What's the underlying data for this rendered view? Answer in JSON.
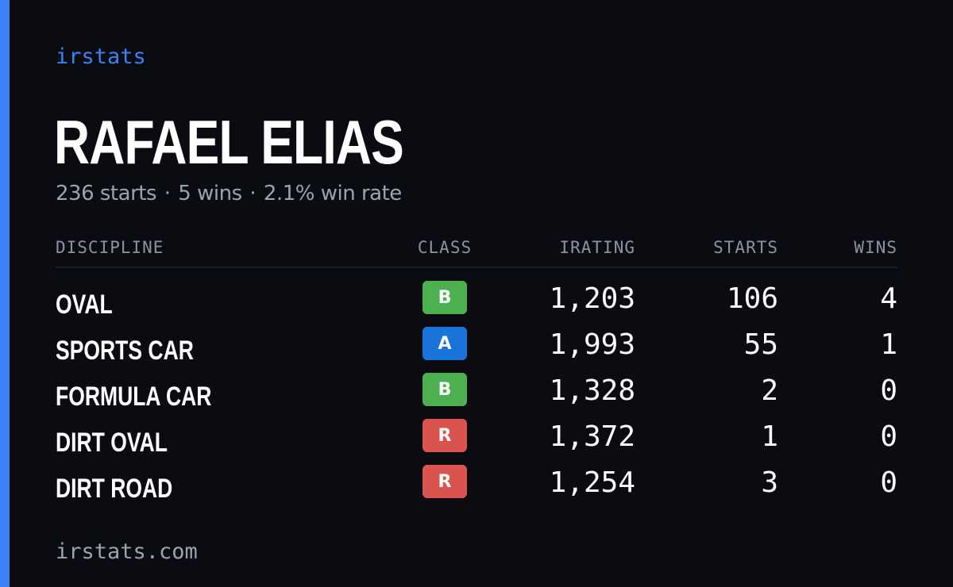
{
  "brand": "irstats",
  "driver": {
    "name": "RAFAEL ELIAS",
    "starts_text": "236 starts",
    "wins_text": "5 wins",
    "winrate_text": "2.1% win rate",
    "separator": "·"
  },
  "table": {
    "headers": {
      "discipline": "DISCIPLINE",
      "class": "CLASS",
      "irating": "IRATING",
      "starts": "STARTS",
      "wins": "WINS"
    },
    "rows": [
      {
        "discipline": "OVAL",
        "class": "B",
        "class_color": "#4caf50",
        "irating": "1,203",
        "starts": "106",
        "wins": "4"
      },
      {
        "discipline": "SPORTS CAR",
        "class": "A",
        "class_color": "#1a73d9",
        "irating": "1,993",
        "starts": "55",
        "wins": "1"
      },
      {
        "discipline": "FORMULA CAR",
        "class": "B",
        "class_color": "#4caf50",
        "irating": "1,328",
        "starts": "2",
        "wins": "0"
      },
      {
        "discipline": "DIRT OVAL",
        "class": "R",
        "class_color": "#d9534f",
        "irating": "1,372",
        "starts": "1",
        "wins": "0"
      },
      {
        "discipline": "DIRT ROAD",
        "class": "R",
        "class_color": "#d9534f",
        "irating": "1,254",
        "starts": "3",
        "wins": "0"
      }
    ]
  },
  "footer": "irstats.com",
  "colors": {
    "accent": "#3b82f6",
    "background": "#0a0c12",
    "muted_text": "#9ca3af"
  }
}
